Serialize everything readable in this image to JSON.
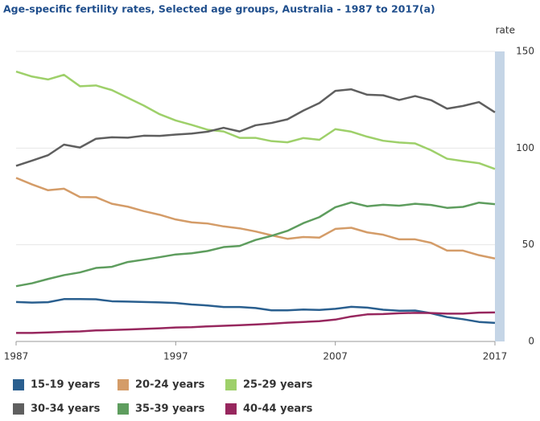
{
  "chart_data": {
    "type": "line",
    "title": "Age-specific fertility rates, Selected age groups, Australia - 1987 to 2017(a)",
    "ylabel": "rate",
    "x": [
      1987,
      1988,
      1989,
      1990,
      1991,
      1992,
      1993,
      1994,
      1995,
      1996,
      1997,
      1998,
      1999,
      2000,
      2001,
      2002,
      2003,
      2004,
      2005,
      2006,
      2007,
      2008,
      2009,
      2010,
      2011,
      2012,
      2013,
      2014,
      2015,
      2016,
      2017
    ],
    "xlim": [
      1987,
      2017
    ],
    "xticks": [
      1987,
      1997,
      2007,
      2017
    ],
    "ylim": [
      0,
      150
    ],
    "yticks": [
      0,
      50,
      100,
      150
    ],
    "grid": true,
    "series": [
      {
        "name": "15-19 years",
        "color": "#2a5f8f",
        "values": [
          20.4,
          20.1,
          20.3,
          21.9,
          21.9,
          21.8,
          20.8,
          20.6,
          20.4,
          20.2,
          19.9,
          19.1,
          18.6,
          17.8,
          17.8,
          17.3,
          16.1,
          16.1,
          16.5,
          16.3,
          16.9,
          17.9,
          17.5,
          16.4,
          15.9,
          16.0,
          14.6,
          12.6,
          11.5,
          10.1,
          9.6
        ]
      },
      {
        "name": "20-24 years",
        "color": "#d49c68",
        "values": [
          84.6,
          81.2,
          78.2,
          79.0,
          74.7,
          74.6,
          71.2,
          69.7,
          67.4,
          65.5,
          63.1,
          61.6,
          61.0,
          59.5,
          58.5,
          56.9,
          54.9,
          53.1,
          54.0,
          53.7,
          58.2,
          58.8,
          56.4,
          55.2,
          52.8,
          52.8,
          51.0,
          47.0,
          47.0,
          44.6,
          42.9
        ]
      },
      {
        "name": "25-29 years",
        "color": "#9ed06a",
        "values": [
          139.6,
          137.0,
          135.5,
          137.9,
          132.0,
          132.4,
          130.0,
          126.0,
          122.0,
          117.5,
          114.3,
          112.0,
          109.5,
          108.6,
          105.3,
          105.3,
          103.6,
          103.0,
          105.2,
          104.3,
          109.8,
          108.5,
          105.9,
          103.8,
          102.9,
          102.4,
          98.9,
          94.5,
          93.3,
          92.2,
          89.2
        ]
      },
      {
        "name": "30-34 years",
        "color": "#5f5f5f",
        "values": [
          90.8,
          93.5,
          96.3,
          101.8,
          100.3,
          104.8,
          105.6,
          105.4,
          106.4,
          106.3,
          107.0,
          107.5,
          108.5,
          110.5,
          108.6,
          111.8,
          113.0,
          114.9,
          119.4,
          123.3,
          129.6,
          130.4,
          127.6,
          127.3,
          124.9,
          126.9,
          124.8,
          120.4,
          121.8,
          123.8,
          118.5
        ]
      },
      {
        "name": "35-39 years",
        "color": "#5e9d5e",
        "values": [
          28.6,
          30.1,
          32.3,
          34.3,
          35.7,
          38.0,
          38.6,
          41.1,
          42.3,
          43.6,
          45.0,
          45.6,
          46.8,
          48.8,
          49.4,
          52.5,
          54.6,
          57.2,
          61.2,
          64.3,
          69.4,
          71.9,
          69.9,
          70.7,
          70.2,
          71.2,
          70.6,
          69.1,
          69.6,
          71.8,
          71.0
        ]
      },
      {
        "name": "40-44 years",
        "color": "#97275e",
        "values": [
          4.4,
          4.4,
          4.7,
          5.0,
          5.2,
          5.7,
          5.9,
          6.2,
          6.5,
          6.8,
          7.2,
          7.4,
          7.8,
          8.1,
          8.4,
          8.8,
          9.2,
          9.7,
          10.1,
          10.5,
          11.3,
          12.9,
          14.0,
          14.2,
          14.6,
          14.8,
          14.7,
          14.4,
          14.4,
          14.9,
          15.0
        ]
      }
    ]
  }
}
